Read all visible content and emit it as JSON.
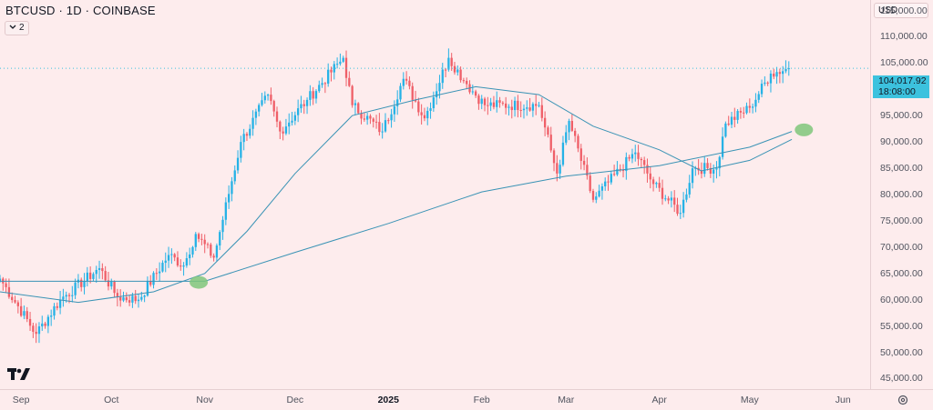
{
  "header": {
    "title": "BTCUSD · 1D · COINBASE",
    "indicator_count": "2"
  },
  "price_axis": {
    "currency": "USD",
    "labels": [
      "115,000.00",
      "110,000.00",
      "105,000.00",
      "100,000.00",
      "95,000.00",
      "90,000.00",
      "85,000.00",
      "80,000.00",
      "75,000.00",
      "70,000.00",
      "65,000.00",
      "60,000.00",
      "55,000.00",
      "50,000.00",
      "45,000.00"
    ],
    "last_price": "104,017.92",
    "countdown": "18:08:00"
  },
  "time_axis": {
    "labels": [
      {
        "text": "Sep",
        "bold": false
      },
      {
        "text": "Oct",
        "bold": false
      },
      {
        "text": "Nov",
        "bold": false
      },
      {
        "text": "Dec",
        "bold": false
      },
      {
        "text": "2025",
        "bold": true
      },
      {
        "text": "Feb",
        "bold": false
      },
      {
        "text": "Mar",
        "bold": false
      },
      {
        "text": "Apr",
        "bold": false
      },
      {
        "text": "May",
        "bold": false
      },
      {
        "text": "Jun",
        "bold": false
      }
    ]
  },
  "colors": {
    "background": "#fdeced",
    "up": "#26b2e6",
    "down": "#ef5f68",
    "ma": "#3a93b5",
    "marker": "#7fc77a",
    "last_price": "#3cc2de"
  },
  "chart_data": {
    "type": "candlestick",
    "symbol": "BTCUSD",
    "interval": "1D",
    "exchange": "COINBASE",
    "ylim": [
      43000,
      117000
    ],
    "xlim": [
      "2024-08-25",
      "2025-06-10"
    ],
    "anchors": [
      {
        "date": "2024-08-25",
        "close": 64000
      },
      {
        "date": "2024-09-06",
        "close": 53500
      },
      {
        "date": "2024-09-14",
        "close": 60000
      },
      {
        "date": "2024-09-27",
        "close": 66000
      },
      {
        "date": "2024-10-03",
        "close": 60500
      },
      {
        "date": "2024-10-10",
        "close": 60000
      },
      {
        "date": "2024-10-20",
        "close": 68500
      },
      {
        "date": "2024-10-25",
        "close": 66500
      },
      {
        "date": "2024-10-29",
        "close": 72500
      },
      {
        "date": "2024-11-04",
        "close": 68000
      },
      {
        "date": "2024-11-13",
        "close": 90000
      },
      {
        "date": "2024-11-22",
        "close": 99000
      },
      {
        "date": "2024-11-26",
        "close": 92000
      },
      {
        "date": "2024-12-05",
        "close": 98000
      },
      {
        "date": "2024-12-17",
        "close": 106000
      },
      {
        "date": "2024-12-20",
        "close": 97000
      },
      {
        "date": "2024-12-30",
        "close": 92000
      },
      {
        "date": "2025-01-06",
        "close": 102000
      },
      {
        "date": "2025-01-13",
        "close": 94500
      },
      {
        "date": "2025-01-21",
        "close": 106000
      },
      {
        "date": "2025-01-27",
        "close": 101000
      },
      {
        "date": "2025-02-02",
        "close": 97000
      },
      {
        "date": "2025-02-20",
        "close": 97000
      },
      {
        "date": "2025-02-26",
        "close": 84000
      },
      {
        "date": "2025-03-02",
        "close": 94000
      },
      {
        "date": "2025-03-10",
        "close": 79000
      },
      {
        "date": "2025-03-24",
        "close": 88000
      },
      {
        "date": "2025-03-30",
        "close": 82000
      },
      {
        "date": "2025-04-08",
        "close": 76500
      },
      {
        "date": "2025-04-12",
        "close": 85000
      },
      {
        "date": "2025-04-20",
        "close": 85000
      },
      {
        "date": "2025-04-23",
        "close": 93500
      },
      {
        "date": "2025-05-01",
        "close": 96500
      },
      {
        "date": "2025-05-08",
        "close": 103000
      },
      {
        "date": "2025-05-14",
        "close": 104018
      }
    ],
    "moving_averages": [
      {
        "points": [
          {
            "date": "2024-08-25",
            "value": 61500
          },
          {
            "date": "2024-09-20",
            "value": 59500
          },
          {
            "date": "2024-10-15",
            "value": 61500
          },
          {
            "date": "2024-11-01",
            "value": 65000
          },
          {
            "date": "2024-11-15",
            "value": 73000
          },
          {
            "date": "2024-12-01",
            "value": 84000
          },
          {
            "date": "2024-12-20",
            "value": 95000
          },
          {
            "date": "2025-01-10",
            "value": 98000
          },
          {
            "date": "2025-01-30",
            "value": 100500
          },
          {
            "date": "2025-02-20",
            "value": 99000
          },
          {
            "date": "2025-03-10",
            "value": 93000
          },
          {
            "date": "2025-04-01",
            "value": 88500
          },
          {
            "date": "2025-04-15",
            "value": 84500
          },
          {
            "date": "2025-05-01",
            "value": 86500
          },
          {
            "date": "2025-05-15",
            "value": 90500
          }
        ]
      },
      {
        "points": [
          {
            "date": "2024-08-25",
            "value": 63500
          },
          {
            "date": "2024-10-01",
            "value": 63500
          },
          {
            "date": "2024-11-01",
            "value": 63500
          },
          {
            "date": "2024-12-01",
            "value": 69000
          },
          {
            "date": "2025-01-01",
            "value": 74500
          },
          {
            "date": "2025-02-01",
            "value": 80500
          },
          {
            "date": "2025-03-01",
            "value": 83500
          },
          {
            "date": "2025-04-01",
            "value": 85500
          },
          {
            "date": "2025-05-01",
            "value": 89000
          },
          {
            "date": "2025-05-15",
            "value": 92000
          }
        ]
      }
    ],
    "markers": [
      {
        "date": "2024-10-30",
        "value": 63300
      },
      {
        "date": "2025-05-19",
        "value": 92300
      }
    ]
  }
}
